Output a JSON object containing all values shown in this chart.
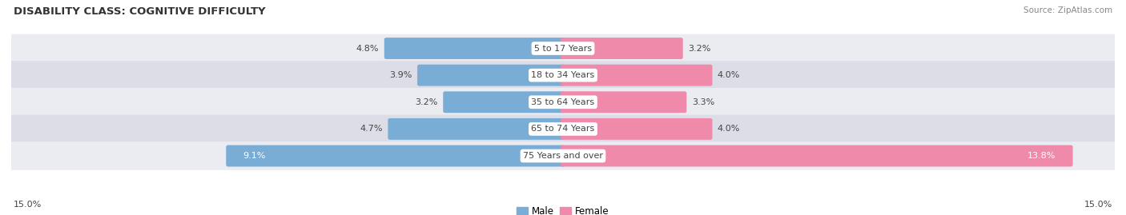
{
  "title": "DISABILITY CLASS: COGNITIVE DIFFICULTY",
  "source": "Source: ZipAtlas.com",
  "categories": [
    "5 to 17 Years",
    "18 to 34 Years",
    "35 to 64 Years",
    "65 to 74 Years",
    "75 Years and over"
  ],
  "male_values": [
    4.8,
    3.9,
    3.2,
    4.7,
    9.1
  ],
  "female_values": [
    3.2,
    4.0,
    3.3,
    4.0,
    13.8
  ],
  "male_color": "#7aadd6",
  "female_color": "#f08aaa",
  "male_label": "Male",
  "female_label": "Female",
  "axis_max": 15.0,
  "axis_label_left": "15.0%",
  "axis_label_right": "15.0%",
  "background_color": "#ffffff",
  "row_bg_colors": [
    "#ebebf2",
    "#dddde8",
    "#ebebf2",
    "#dddde8",
    "#ebebf2"
  ],
  "title_fontsize": 9.5,
  "bar_fontsize": 8,
  "label_fontsize": 8,
  "source_fontsize": 7.5
}
